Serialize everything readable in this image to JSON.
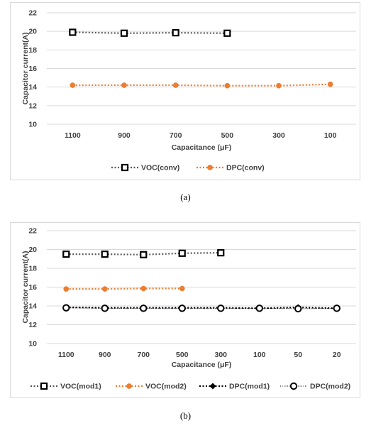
{
  "chart_data": [
    {
      "type": "line",
      "ylabel": "Capacitor current(A)",
      "xlabel": "Capacitance  (μF)",
      "ylim": [
        10,
        22
      ],
      "yticks": [
        10,
        12,
        14,
        16,
        18,
        20,
        22
      ],
      "categories": [
        "1100",
        "900",
        "700",
        "500",
        "300",
        "100"
      ],
      "legend_position": "bottom",
      "grid": true,
      "series": [
        {
          "name": "VOC(conv)",
          "color": "#595959",
          "marker": "square-open",
          "line": "dotted",
          "values": [
            19.9,
            19.8,
            19.85,
            19.8,
            null,
            null
          ]
        },
        {
          "name": "DPC(conv)",
          "color": "#ed7d31",
          "marker": "circle-filled",
          "line": "dotted",
          "values": [
            14.2,
            14.2,
            14.2,
            14.15,
            14.15,
            14.3
          ]
        }
      ]
    },
    {
      "type": "line",
      "ylabel": "Capacitor current(A)",
      "xlabel": "Capacitance  (μF)",
      "ylim": [
        10,
        22
      ],
      "yticks": [
        10,
        12,
        14,
        16,
        18,
        20,
        22
      ],
      "categories": [
        "1100",
        "900",
        "700",
        "500",
        "300",
        "100",
        "50",
        "20"
      ],
      "legend_position": "bottom",
      "grid": true,
      "series": [
        {
          "name": "VOC(mod1)",
          "color": "#595959",
          "marker": "square-open",
          "line": "dotted",
          "values": [
            19.5,
            19.5,
            19.45,
            19.6,
            19.65,
            null,
            null,
            null
          ]
        },
        {
          "name": "VOC(mod2)",
          "color": "#ed7d31",
          "marker": "circle-filled",
          "line": "dotted",
          "values": [
            15.8,
            15.8,
            15.85,
            15.85,
            null,
            null,
            null,
            null
          ]
        },
        {
          "name": "DPC(mod1)",
          "color": "#000000",
          "marker": "diamond-filled",
          "line": "dotted",
          "values": [
            13.85,
            13.8,
            13.8,
            13.8,
            13.8,
            13.75,
            13.85,
            13.75
          ]
        },
        {
          "name": "DPC(mod2)",
          "color": "#000000",
          "marker": "circle-open",
          "line": "dotted-fine",
          "values": [
            13.8,
            13.75,
            13.75,
            13.75,
            13.75,
            13.75,
            13.7,
            13.75
          ]
        }
      ]
    }
  ],
  "captions": {
    "a": "(a)",
    "b": "(b)"
  }
}
